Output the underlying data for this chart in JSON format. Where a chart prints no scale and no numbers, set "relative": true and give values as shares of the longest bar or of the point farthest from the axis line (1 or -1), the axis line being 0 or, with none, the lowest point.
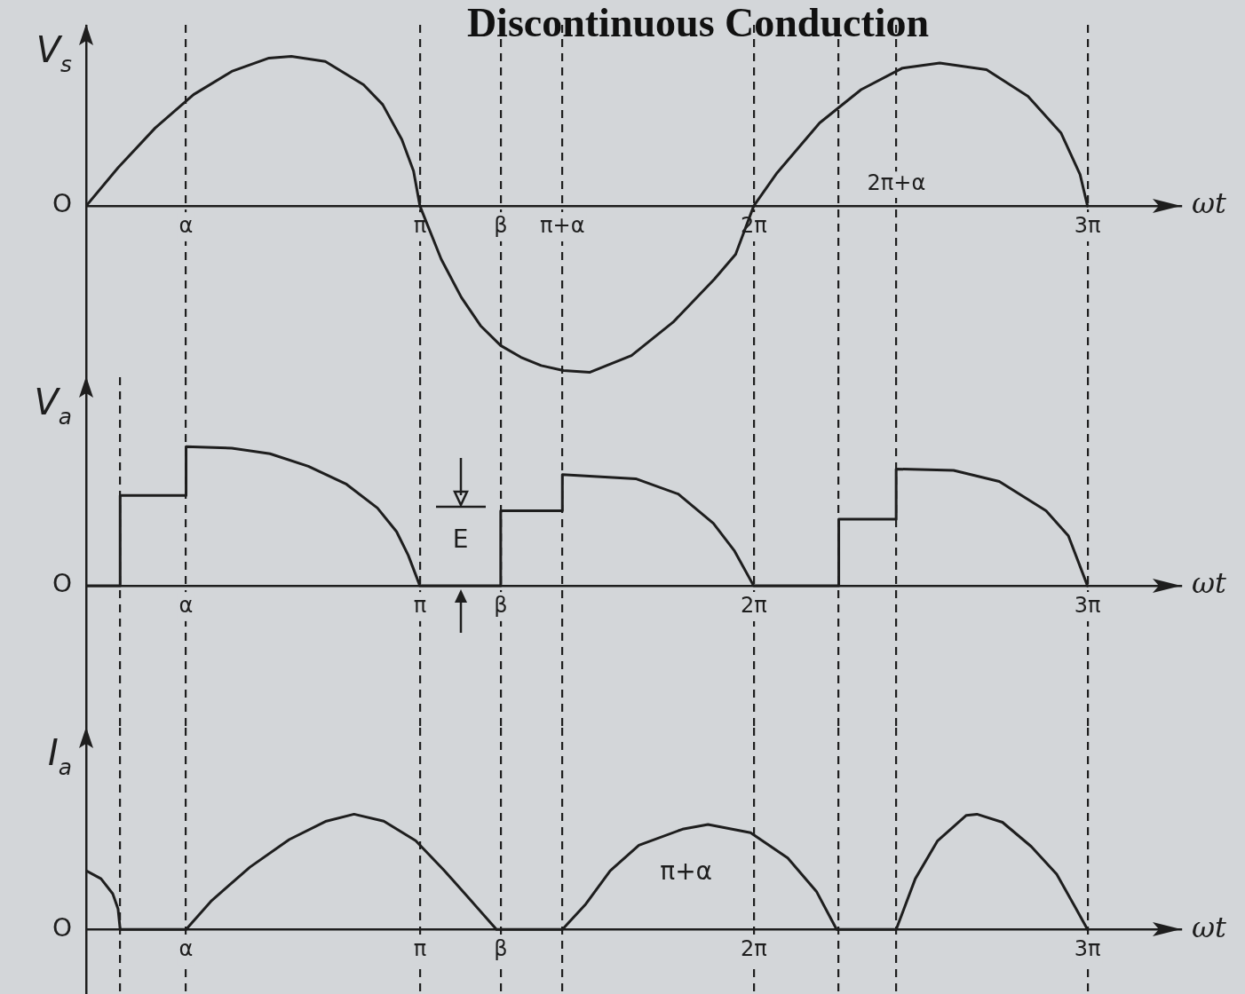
{
  "chart_data": [
    {
      "type": "line",
      "title": "Discontinuous Conduction",
      "xlabel": "ωt",
      "ylabel": "V$_{s}$",
      "relative": true,
      "color": "#1e1e1e",
      "grid": "x",
      "x": [
        0,
        0.3,
        0.65,
        1.01,
        1.37,
        1.72,
        1.93,
        2.25,
        2.61,
        2.79,
        2.97,
        3.08,
        3.14,
        3.34,
        3.53,
        3.71,
        3.9,
        4.09,
        4.28,
        4.49,
        4.74,
        5.13,
        5.52,
        5.91,
        6.11,
        6.28,
        6.5,
        6.9,
        7.29,
        7.68,
        8.03,
        8.47,
        8.86,
        9.17,
        9.35,
        9.42
      ],
      "values": [
        0,
        0.23,
        0.47,
        0.67,
        0.81,
        0.89,
        0.9,
        0.87,
        0.73,
        0.61,
        0.4,
        0.21,
        0,
        -0.32,
        -0.55,
        -0.72,
        -0.84,
        -0.91,
        -0.96,
        -0.99,
        -1.0,
        -0.9,
        -0.7,
        -0.44,
        -0.29,
        0,
        0.2,
        0.5,
        0.7,
        0.83,
        0.86,
        0.82,
        0.66,
        0.44,
        0.19,
        0
      ],
      "xlim": [
        0,
        10.3
      ],
      "xticks": [
        {
          "value": 0.94,
          "label": "α"
        },
        {
          "value": 3.14,
          "label": "π"
        },
        {
          "value": 3.9,
          "label": "β"
        },
        {
          "value": 4.48,
          "label": "π+α"
        },
        {
          "value": 6.28,
          "label": "2π"
        },
        {
          "value": 7.08,
          "label": null
        },
        {
          "value": 7.62,
          "label": null
        },
        {
          "value": 9.42,
          "label": "3π"
        }
      ],
      "annotations": [
        "O",
        "2π+α"
      ]
    },
    {
      "type": "line",
      "xlabel": "ωt",
      "ylabel": "V$_{a}$",
      "relative": true,
      "color": "#1e1e1e",
      "grid": "x",
      "x": [
        0,
        0.32,
        0.32,
        0.94,
        0.94,
        1.37,
        1.73,
        2.09,
        2.45,
        2.74,
        2.92,
        3.03,
        3.14,
        3.9,
        3.9,
        4.48,
        4.48,
        5.17,
        5.57,
        5.9,
        6.1,
        6.28,
        7.08,
        7.08,
        7.62,
        7.62,
        8.16,
        8.59,
        9.03,
        9.24,
        9.42
      ],
      "values": [
        0,
        0,
        0.65,
        0.65,
        1.0,
        0.99,
        0.95,
        0.86,
        0.73,
        0.56,
        0.39,
        0.22,
        0,
        0,
        0.54,
        0.54,
        0.8,
        0.77,
        0.66,
        0.45,
        0.25,
        0,
        0,
        0.48,
        0.48,
        0.84,
        0.83,
        0.75,
        0.54,
        0.36,
        0
      ],
      "xlim": [
        0,
        10.3
      ],
      "xticks": [
        {
          "value": 0.32,
          "label": null
        },
        {
          "value": 0.94,
          "label": "α"
        },
        {
          "value": 3.14,
          "label": "π"
        },
        {
          "value": 3.9,
          "label": "β"
        },
        {
          "value": 4.48,
          "label": null
        },
        {
          "value": 6.28,
          "label": "2π"
        },
        {
          "value": 7.08,
          "label": null
        },
        {
          "value": 7.62,
          "label": null
        },
        {
          "value": 9.42,
          "label": "3π"
        }
      ],
      "annotations": [
        "O",
        "E"
      ]
    },
    {
      "type": "line",
      "xlabel": "ωt",
      "ylabel": "I$_{a}$",
      "relative": true,
      "color": "#1e1e1e",
      "grid": "x",
      "x": [
        0,
        0.14,
        0.25,
        0.3,
        0.32,
        0.94,
        1.18,
        1.54,
        1.91,
        2.26,
        2.52,
        2.8,
        3.1,
        3.36,
        3.63,
        3.86,
        4.48,
        4.7,
        4.93,
        5.2,
        5.61,
        5.85,
        6.25,
        6.6,
        6.87,
        7.06,
        7.62,
        7.8,
        8.01,
        8.28,
        8.38,
        8.62,
        8.89,
        9.13,
        9.3,
        9.42
      ],
      "values": [
        0.51,
        0.44,
        0.31,
        0.18,
        0,
        0,
        0.25,
        0.54,
        0.78,
        0.94,
        1.0,
        0.94,
        0.77,
        0.52,
        0.24,
        0,
        0,
        0.22,
        0.51,
        0.73,
        0.87,
        0.91,
        0.84,
        0.62,
        0.33,
        0,
        0,
        0.44,
        0.77,
        0.99,
        1.0,
        0.93,
        0.72,
        0.48,
        0.2,
        0
      ],
      "xlim": [
        0,
        10.3
      ],
      "xticks": [
        {
          "value": 0.32,
          "label": null
        },
        {
          "value": 0.94,
          "label": "α"
        },
        {
          "value": 3.14,
          "label": "π"
        },
        {
          "value": 3.9,
          "label": "β"
        },
        {
          "value": 4.48,
          "label": null
        },
        {
          "value": 6.28,
          "label": "2π"
        },
        {
          "value": 7.08,
          "label": null
        },
        {
          "value": 7.62,
          "label": null
        },
        {
          "value": 9.42,
          "label": "3π"
        }
      ],
      "annotations": [
        "O",
        "π+α"
      ]
    }
  ]
}
